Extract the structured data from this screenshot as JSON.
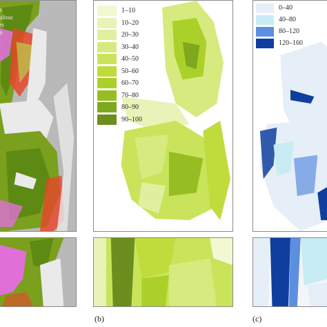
{
  "panel_b": {
    "label": "(b)",
    "legend": [
      {
        "label": "1–10",
        "color": "#f3f7d2"
      },
      {
        "label": "10–20",
        "color": "#e9f3b8"
      },
      {
        "label": "20–30",
        "color": "#e0ef9f"
      },
      {
        "label": "30–40",
        "color": "#d6ea7f"
      },
      {
        "label": "40–50",
        "color": "#c9e45a"
      },
      {
        "label": "50–60",
        "color": "#bfdc3c"
      },
      {
        "label": "60–70",
        "color": "#acd02a"
      },
      {
        "label": "70–80",
        "color": "#96be22"
      },
      {
        "label": "80–90",
        "color": "#7fa81e"
      },
      {
        "label": "90–100",
        "color": "#6b8e1f"
      }
    ]
  },
  "panel_c": {
    "label": "(c)",
    "legend": [
      {
        "label": "0–40",
        "color": "#e6eef7"
      },
      {
        "label": "40–80",
        "color": "#c8ecf3"
      },
      {
        "label": "80–120",
        "color": "#5c8fe0"
      },
      {
        "label": "120–160",
        "color": "#0f3f9e"
      }
    ]
  },
  "panel_a": {
    "legend_fragments": [
      "s",
      "",
      "ulosa",
      "rs",
      "p"
    ],
    "colors": {
      "background": "#b9b9b9",
      "land": "#eaeaea",
      "vegetation": "#7aa01e",
      "dense": "#5d8a12",
      "magenta": "#e070d8",
      "red": "#e8452a"
    }
  }
}
